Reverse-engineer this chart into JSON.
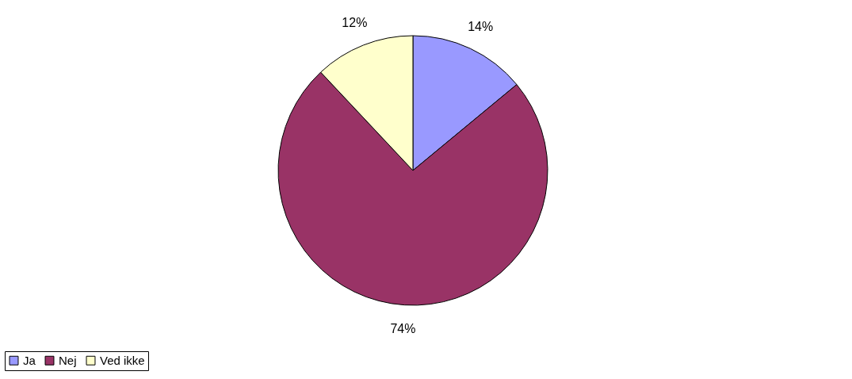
{
  "chart_data": {
    "type": "pie",
    "categories": [
      "Ja",
      "Nej",
      "Ved ikke"
    ],
    "values": [
      14,
      74,
      12
    ],
    "colors": [
      "#9999ff",
      "#993366",
      "#ffffcc"
    ],
    "value_labels": [
      "14%",
      "74%",
      "12%"
    ],
    "legend": "bottom"
  }
}
